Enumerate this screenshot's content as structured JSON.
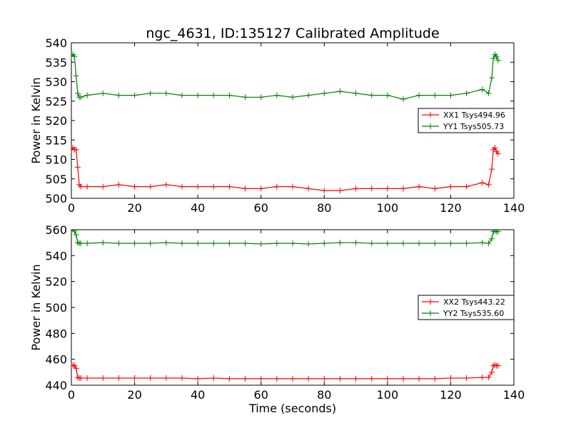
{
  "chart_data": [
    {
      "type": "line",
      "title": "ngc_4631, ID:135127 Calibrated Amplitude",
      "xlabel": "",
      "ylabel": "Power in Kelvin",
      "xlim": [
        0,
        140
      ],
      "ylim": [
        500,
        540
      ],
      "xticks": [
        "0",
        "20",
        "40",
        "60",
        "80",
        "100",
        "120",
        "140"
      ],
      "yticks": [
        "500",
        "505",
        "510",
        "515",
        "520",
        "525",
        "530",
        "535",
        "540"
      ],
      "grid": false,
      "legend_position": "right",
      "series": [
        {
          "name": "XX1 Tsys494.96",
          "color": "#ff0000",
          "x": [
            0,
            0.5,
            1,
            1.5,
            2,
            2.5,
            3,
            5,
            10,
            15,
            20,
            25,
            30,
            35,
            40,
            45,
            50,
            55,
            60,
            65,
            70,
            75,
            80,
            85,
            90,
            95,
            100,
            105,
            110,
            115,
            120,
            125,
            130,
            132,
            133,
            133.5,
            134,
            134.5,
            135
          ],
          "y": [
            512.5,
            513,
            512.5,
            512.5,
            508,
            503.5,
            503,
            503,
            503,
            503.5,
            503,
            503,
            503.5,
            503,
            503,
            503,
            503,
            502.5,
            502.5,
            503,
            503,
            502.5,
            502,
            502,
            502.5,
            502.5,
            502.5,
            502.5,
            503,
            502.5,
            503,
            503,
            504,
            503.5,
            507.5,
            512.5,
            513,
            512,
            511.5
          ]
        },
        {
          "name": "YY1 Tsys505.73",
          "color": "#008000",
          "x": [
            0,
            0.5,
            1,
            1.5,
            2,
            2.5,
            3,
            5,
            10,
            15,
            20,
            25,
            30,
            35,
            40,
            45,
            50,
            55,
            60,
            65,
            70,
            75,
            80,
            85,
            90,
            95,
            100,
            105,
            110,
            115,
            120,
            125,
            130,
            132,
            133,
            133.5,
            134,
            134.5,
            135
          ],
          "y": [
            536.5,
            537,
            536.5,
            531.5,
            527,
            526,
            526,
            526.5,
            527,
            526.5,
            526.5,
            527,
            527,
            526.5,
            526.5,
            526.5,
            526.5,
            526,
            526,
            526.5,
            526,
            526.5,
            527,
            527.5,
            527,
            526.5,
            526.5,
            525.5,
            526.5,
            526.5,
            526.5,
            527,
            528,
            527,
            531,
            536,
            537,
            536.5,
            535.5
          ]
        }
      ]
    },
    {
      "type": "line",
      "title": "",
      "xlabel": "Time (seconds)",
      "ylabel": "Power in Kelvin",
      "xlim": [
        0,
        140
      ],
      "ylim": [
        440,
        560
      ],
      "xticks": [
        "0",
        "20",
        "40",
        "60",
        "80",
        "100",
        "120",
        "140"
      ],
      "yticks": [
        "440",
        "460",
        "480",
        "500",
        "520",
        "540",
        "560"
      ],
      "grid": false,
      "legend_position": "right",
      "series": [
        {
          "name": "XX2 Tsys443.22",
          "color": "#ff0000",
          "x": [
            0,
            0.5,
            1,
            1.5,
            2,
            2.5,
            3,
            5,
            10,
            15,
            20,
            25,
            30,
            35,
            40,
            45,
            50,
            55,
            60,
            65,
            70,
            75,
            80,
            85,
            90,
            95,
            100,
            105,
            110,
            115,
            120,
            125,
            130,
            132,
            133,
            133.5,
            134,
            134.5,
            135
          ],
          "y": [
            455,
            455.5,
            455,
            453,
            446,
            445.5,
            445.5,
            445.5,
            445.5,
            445.5,
            445.5,
            445.5,
            445.5,
            445.5,
            445,
            445.5,
            445,
            445,
            445,
            445,
            445,
            445,
            445,
            445,
            445,
            445,
            445,
            445,
            445,
            445,
            445.5,
            445.5,
            446,
            446,
            450,
            455,
            455.5,
            455,
            455
          ]
        },
        {
          "name": "YY2 Tsys535.60",
          "color": "#008000",
          "x": [
            0,
            0.5,
            1,
            1.5,
            2,
            2.5,
            3,
            5,
            10,
            15,
            20,
            25,
            30,
            35,
            40,
            45,
            50,
            55,
            60,
            65,
            70,
            75,
            80,
            85,
            90,
            95,
            100,
            105,
            110,
            115,
            120,
            125,
            130,
            132,
            133,
            133.5,
            134,
            134.5,
            135
          ],
          "y": [
            559.5,
            560,
            559,
            556,
            550,
            549.5,
            549.5,
            549.5,
            550,
            549.5,
            549.5,
            549.5,
            550,
            549.5,
            549.5,
            549.5,
            549.5,
            549.5,
            549,
            549.5,
            549.5,
            549,
            549.5,
            550,
            550,
            549.5,
            549.5,
            549.5,
            549.5,
            549.5,
            549.5,
            549.5,
            550,
            549.5,
            553,
            558.5,
            559,
            558.5,
            558.5
          ]
        }
      ]
    }
  ]
}
